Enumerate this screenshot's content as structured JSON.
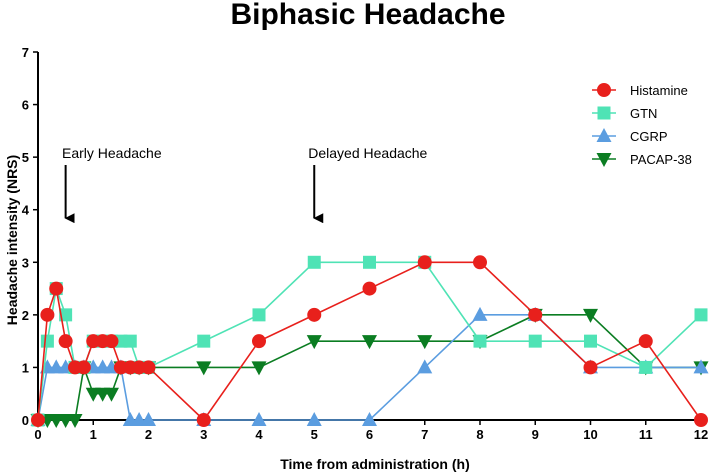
{
  "chart_data": {
    "type": "line",
    "title": "Biphasic Headache",
    "xlabel": "Time from administration (h)",
    "ylabel": "Headache intensity (NRS)",
    "xlim": [
      0,
      12
    ],
    "ylim": [
      0,
      7
    ],
    "xticks": [
      "0",
      "1",
      "2",
      "3",
      "4",
      "5",
      "6",
      "7",
      "8",
      "9",
      "10",
      "11",
      "12"
    ],
    "yticks": [
      "0",
      "1",
      "2",
      "3",
      "4",
      "5",
      "6",
      "7"
    ],
    "grid": false,
    "legend_position": "top-right",
    "annotations": [
      {
        "text": "Early Headache",
        "x": 0.5,
        "arrow_to_y": 3.8
      },
      {
        "text": "Delayed Headache",
        "x": 5,
        "arrow_to_y": 3.8
      }
    ],
    "series": [
      {
        "name": "Histamine",
        "color": "#e8201c",
        "marker": "circle",
        "x": [
          0,
          0.17,
          0.33,
          0.5,
          0.67,
          0.83,
          1,
          1.17,
          1.33,
          1.5,
          1.67,
          1.83,
          2,
          3,
          4,
          5,
          6,
          7,
          8,
          9,
          10,
          11,
          12
        ],
        "y": [
          0,
          2,
          2.5,
          1.5,
          1,
          1,
          1.5,
          1.5,
          1.5,
          1,
          1,
          1,
          1,
          0,
          1.5,
          2,
          2.5,
          3,
          3,
          2,
          1,
          1.5,
          0
        ]
      },
      {
        "name": "GTN",
        "color": "#4fe3b5",
        "marker": "square",
        "x": [
          0,
          0.17,
          0.33,
          0.5,
          0.67,
          0.83,
          1,
          1.17,
          1.33,
          1.5,
          1.67,
          1.83,
          2,
          3,
          4,
          5,
          6,
          7,
          8,
          9,
          10,
          11,
          12
        ],
        "y": [
          0,
          1.5,
          2.5,
          2,
          1,
          1,
          1.5,
          1.5,
          1.5,
          1.5,
          1.5,
          1,
          1,
          1.5,
          2,
          3,
          3,
          3,
          1.5,
          1.5,
          1.5,
          1,
          2
        ]
      },
      {
        "name": "CGRP",
        "color": "#5b9de0",
        "marker": "triangle-up",
        "x": [
          0,
          0.17,
          0.33,
          0.5,
          0.67,
          0.83,
          1,
          1.17,
          1.33,
          1.5,
          1.67,
          1.83,
          2,
          3,
          4,
          5,
          6,
          7,
          8,
          9,
          10,
          11,
          12
        ],
        "y": [
          0,
          1,
          1,
          1,
          1,
          1,
          1,
          1,
          1,
          1,
          0,
          0,
          0,
          0,
          0,
          0,
          0,
          1,
          2,
          2,
          1,
          1,
          1
        ]
      },
      {
        "name": "PACAP-38",
        "color": "#0b7d22",
        "marker": "triangle-down",
        "x": [
          0,
          0.17,
          0.33,
          0.5,
          0.67,
          0.83,
          1,
          1.17,
          1.33,
          1.5,
          1.67,
          1.83,
          2,
          3,
          4,
          5,
          6,
          7,
          8,
          9,
          10,
          11,
          12
        ],
        "y": [
          0,
          0,
          0,
          0,
          0,
          1,
          0.5,
          0.5,
          0.5,
          1,
          1,
          1,
          1,
          1,
          1,
          1.5,
          1.5,
          1.5,
          1.5,
          2,
          2,
          1,
          1
        ]
      }
    ]
  }
}
